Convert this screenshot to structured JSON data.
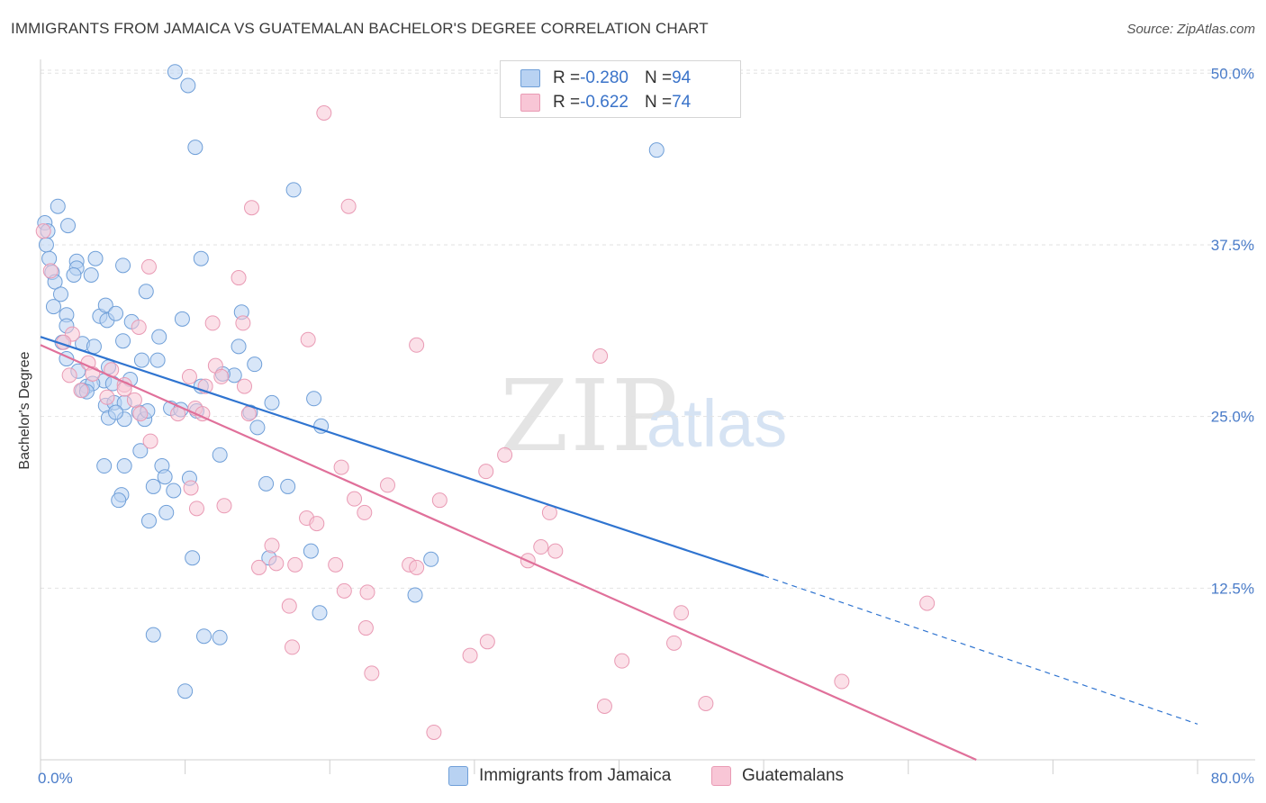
{
  "header": {
    "title": "IMMIGRANTS FROM JAMAICA VS GUATEMALAN BACHELOR'S DEGREE CORRELATION CHART",
    "source": "Source: ZipAtlas.com"
  },
  "watermark": {
    "zip": "ZIP",
    "atlas": "atlas"
  },
  "legend_top": {
    "rows": [
      {
        "r_label": "R = ",
        "r_value": "-0.280",
        "n_label": "N = ",
        "n_value": "94"
      },
      {
        "r_label": "R = ",
        "r_value": "-0.622",
        "n_label": "N = ",
        "n_value": "74"
      }
    ]
  },
  "legend_bottom": {
    "items": [
      {
        "label": "Immigrants from Jamaica"
      },
      {
        "label": "Guatemalans"
      }
    ]
  },
  "colors": {
    "blue_fill": "#b8d2f2",
    "blue_stroke": "#6f9fd8",
    "blue_line": "#2f74d0",
    "pink_fill": "#f8c6d6",
    "pink_stroke": "#e99ab4",
    "pink_line": "#e0709a",
    "grid": "#e2e2e2",
    "tick_text": "#4a7cc9"
  },
  "chart_data": {
    "type": "scatter",
    "title": "IMMIGRANTS FROM JAMAICA VS GUATEMALAN BACHELOR'S DEGREE CORRELATION CHART",
    "xlabel": "",
    "ylabel": "Bachelor's Degree",
    "xlim": [
      0,
      80
    ],
    "ylim": [
      0,
      51
    ],
    "x_tick_labels": [
      "0.0%",
      "80.0%"
    ],
    "y_ticks": [
      12.5,
      25.0,
      37.5,
      50.0
    ],
    "y_tick_labels": [
      "12.5%",
      "25.0%",
      "37.5%",
      "50.0%"
    ],
    "grid": true,
    "series": [
      {
        "name": "Immigrants from Jamaica",
        "R": -0.28,
        "N": 94,
        "trend": {
          "x0": 0,
          "y0": 30.8,
          "x1": 50,
          "y1": 13.4,
          "dashed_to_x": 80,
          "dashed_to_y": 2.6
        },
        "points": [
          [
            0.3,
            39.1
          ],
          [
            0.5,
            38.5
          ],
          [
            0.4,
            37.5
          ],
          [
            0.6,
            36.5
          ],
          [
            0.8,
            35.5
          ],
          [
            1.2,
            40.3
          ],
          [
            1.0,
            34.8
          ],
          [
            1.4,
            33.9
          ],
          [
            0.9,
            33.0
          ],
          [
            1.9,
            38.9
          ],
          [
            2.5,
            36.3
          ],
          [
            2.5,
            35.8
          ],
          [
            2.3,
            35.3
          ],
          [
            3.5,
            35.3
          ],
          [
            3.8,
            36.5
          ],
          [
            5.7,
            36.0
          ],
          [
            1.8,
            32.4
          ],
          [
            1.5,
            30.4
          ],
          [
            1.8,
            31.6
          ],
          [
            2.9,
            30.3
          ],
          [
            3.7,
            30.1
          ],
          [
            4.1,
            32.3
          ],
          [
            4.5,
            33.1
          ],
          [
            4.6,
            32.0
          ],
          [
            5.2,
            32.5
          ],
          [
            5.7,
            30.5
          ],
          [
            6.3,
            31.9
          ],
          [
            1.8,
            29.2
          ],
          [
            4.7,
            28.6
          ],
          [
            4.4,
            27.6
          ],
          [
            5.0,
            27.4
          ],
          [
            6.2,
            27.7
          ],
          [
            3.2,
            27.2
          ],
          [
            3.6,
            27.4
          ],
          [
            2.6,
            28.3
          ],
          [
            2.9,
            26.9
          ],
          [
            3.2,
            26.8
          ],
          [
            4.5,
            25.8
          ],
          [
            5.1,
            26.0
          ],
          [
            5.8,
            26.0
          ],
          [
            6.8,
            25.3
          ],
          [
            7.2,
            24.8
          ],
          [
            5.8,
            24.8
          ],
          [
            4.7,
            24.9
          ],
          [
            5.2,
            25.3
          ],
          [
            7.4,
            25.4
          ],
          [
            7.0,
            29.1
          ],
          [
            8.1,
            29.1
          ],
          [
            8.2,
            30.8
          ],
          [
            9.0,
            25.6
          ],
          [
            9.7,
            25.5
          ],
          [
            9.8,
            32.1
          ],
          [
            10.8,
            25.4
          ],
          [
            11.1,
            36.5
          ],
          [
            7.3,
            34.1
          ],
          [
            10.2,
            49.1
          ],
          [
            10.7,
            44.6
          ],
          [
            9.3,
            50.1
          ],
          [
            13.9,
            32.6
          ],
          [
            13.7,
            30.1
          ],
          [
            14.8,
            28.8
          ],
          [
            13.4,
            28.0
          ],
          [
            12.6,
            28.1
          ],
          [
            14.5,
            25.3
          ],
          [
            16.0,
            26.0
          ],
          [
            15.0,
            24.2
          ],
          [
            18.9,
            26.3
          ],
          [
            19.4,
            24.3
          ],
          [
            17.5,
            41.5
          ],
          [
            11.1,
            27.2
          ],
          [
            4.4,
            21.4
          ],
          [
            5.8,
            21.4
          ],
          [
            6.9,
            22.5
          ],
          [
            8.4,
            21.4
          ],
          [
            8.6,
            20.6
          ],
          [
            10.3,
            20.5
          ],
          [
            12.4,
            22.2
          ],
          [
            7.8,
            19.9
          ],
          [
            9.2,
            19.6
          ],
          [
            5.6,
            19.3
          ],
          [
            5.4,
            18.9
          ],
          [
            8.7,
            18.0
          ],
          [
            7.5,
            17.4
          ],
          [
            15.6,
            20.1
          ],
          [
            17.1,
            19.9
          ],
          [
            10.5,
            14.7
          ],
          [
            15.8,
            14.7
          ],
          [
            18.7,
            15.2
          ],
          [
            27.0,
            14.6
          ],
          [
            25.9,
            12.0
          ],
          [
            19.3,
            10.7
          ],
          [
            7.8,
            9.1
          ],
          [
            11.3,
            9.0
          ],
          [
            12.4,
            8.9
          ],
          [
            10.0,
            5.0
          ],
          [
            42.6,
            44.4
          ]
        ]
      },
      {
        "name": "Guatemalans",
        "R": -0.622,
        "N": 74,
        "trend": {
          "x0": 0,
          "y0": 30.2,
          "x1": 64.7,
          "y1": 0
        },
        "points": [
          [
            0.2,
            38.5
          ],
          [
            0.7,
            35.6
          ],
          [
            2.2,
            31.0
          ],
          [
            1.6,
            30.4
          ],
          [
            3.3,
            28.9
          ],
          [
            2.0,
            28.0
          ],
          [
            2.8,
            26.9
          ],
          [
            3.6,
            28.1
          ],
          [
            4.9,
            28.4
          ],
          [
            5.8,
            27.3
          ],
          [
            5.8,
            27.0
          ],
          [
            4.6,
            26.4
          ],
          [
            6.5,
            26.2
          ],
          [
            7.5,
            35.9
          ],
          [
            6.8,
            31.5
          ],
          [
            7.6,
            23.2
          ],
          [
            6.9,
            25.2
          ],
          [
            10.7,
            25.6
          ],
          [
            11.2,
            25.2
          ],
          [
            10.3,
            27.9
          ],
          [
            11.9,
            31.8
          ],
          [
            12.1,
            28.7
          ],
          [
            12.5,
            27.9
          ],
          [
            14.0,
            31.8
          ],
          [
            14.4,
            25.2
          ],
          [
            14.1,
            27.2
          ],
          [
            13.7,
            35.1
          ],
          [
            14.6,
            40.2
          ],
          [
            18.5,
            30.6
          ],
          [
            19.6,
            47.1
          ],
          [
            21.3,
            40.3
          ],
          [
            26.0,
            30.2
          ],
          [
            38.7,
            29.4
          ],
          [
            20.8,
            21.3
          ],
          [
            21.7,
            19.0
          ],
          [
            22.4,
            18.0
          ],
          [
            24.0,
            20.0
          ],
          [
            25.5,
            14.2
          ],
          [
            26.0,
            14.0
          ],
          [
            27.6,
            18.9
          ],
          [
            30.8,
            21.0
          ],
          [
            32.1,
            22.2
          ],
          [
            34.6,
            15.5
          ],
          [
            33.7,
            14.5
          ],
          [
            35.6,
            15.2
          ],
          [
            35.2,
            18.0
          ],
          [
            18.4,
            17.6
          ],
          [
            19.1,
            17.2
          ],
          [
            12.7,
            18.5
          ],
          [
            10.8,
            18.3
          ],
          [
            10.4,
            19.8
          ],
          [
            16.0,
            15.6
          ],
          [
            16.3,
            14.3
          ],
          [
            15.1,
            14.0
          ],
          [
            17.6,
            14.2
          ],
          [
            20.4,
            14.2
          ],
          [
            21.0,
            12.3
          ],
          [
            22.6,
            12.2
          ],
          [
            22.5,
            9.6
          ],
          [
            17.2,
            11.2
          ],
          [
            17.4,
            8.2
          ],
          [
            22.9,
            6.3
          ],
          [
            29.7,
            7.6
          ],
          [
            30.9,
            8.6
          ],
          [
            40.2,
            7.2
          ],
          [
            44.3,
            10.7
          ],
          [
            43.8,
            8.5
          ],
          [
            39.0,
            3.9
          ],
          [
            46.0,
            4.1
          ],
          [
            27.2,
            2.0
          ],
          [
            55.4,
            5.7
          ],
          [
            61.3,
            11.4
          ],
          [
            11.4,
            27.2
          ],
          [
            9.5,
            25.2
          ]
        ]
      }
    ]
  }
}
